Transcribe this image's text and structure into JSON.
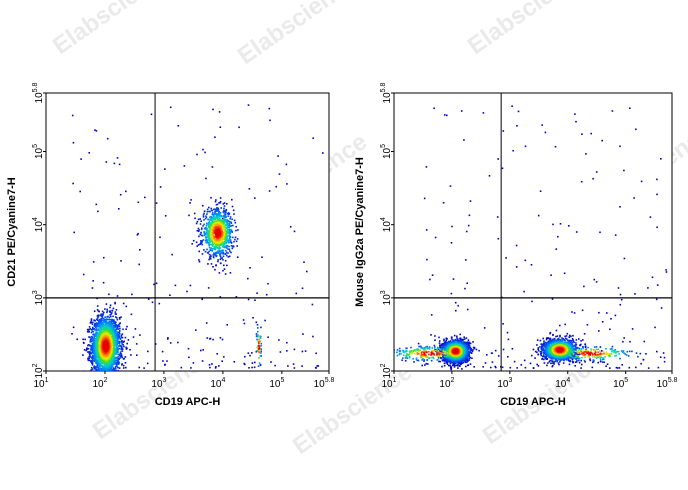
{
  "watermark": {
    "text": "Elabscience",
    "mark": "®"
  },
  "chart_data": [
    {
      "type": "scatter",
      "title": "",
      "xlabel": "CD19 APC-H",
      "ylabel": "CD21 PE/Cyanine7-H",
      "xscale": "log",
      "yscale": "log",
      "xlim_log10": [
        1,
        5.8
      ],
      "ylim_log10": [
        2,
        5.8
      ],
      "x_ticks": [
        {
          "base": "10",
          "exp": "1",
          "v": 1
        },
        {
          "base": "10",
          "exp": "2",
          "v": 2
        },
        {
          "base": "10",
          "exp": "3",
          "v": 3
        },
        {
          "base": "10",
          "exp": "4",
          "v": 4
        },
        {
          "base": "10",
          "exp": "5",
          "v": 5
        },
        {
          "base": "10",
          "exp": "5.8",
          "v": 5.8
        }
      ],
      "y_ticks": [
        {
          "base": "10",
          "exp": "2",
          "v": 2
        },
        {
          "base": "10",
          "exp": "3",
          "v": 3
        },
        {
          "base": "10",
          "exp": "4",
          "v": 4
        },
        {
          "base": "10",
          "exp": "5",
          "v": 5
        },
        {
          "base": "10",
          "exp": "5.8",
          "v": 5.8
        }
      ],
      "gate_log10": {
        "x": 2.85,
        "y": 3.0
      },
      "populations": [
        {
          "x_log10": 2.0,
          "y_log10": 2.35,
          "sx": 0.12,
          "sy": 0.2,
          "count": 2600
        },
        {
          "x_log10": 3.9,
          "y_log10": 3.9,
          "sx": 0.13,
          "sy": 0.16,
          "count": 1000
        },
        {
          "x_log10": 4.6,
          "y_log10": 2.35,
          "sx": 0.02,
          "sy": 0.15,
          "count": 60
        }
      ]
    },
    {
      "type": "scatter",
      "title": "",
      "xlabel": "CD19 APC-H",
      "ylabel": "Mouse IgG2a PE/Cyanine7-H",
      "xscale": "log",
      "yscale": "log",
      "xlim_log10": [
        1,
        5.8
      ],
      "ylim_log10": [
        2,
        5.8
      ],
      "x_ticks": [
        {
          "base": "10",
          "exp": "1",
          "v": 1
        },
        {
          "base": "10",
          "exp": "2",
          "v": 2
        },
        {
          "base": "10",
          "exp": "3",
          "v": 3
        },
        {
          "base": "10",
          "exp": "4",
          "v": 4
        },
        {
          "base": "10",
          "exp": "5",
          "v": 5
        },
        {
          "base": "10",
          "exp": "5.8",
          "v": 5.8
        }
      ],
      "y_ticks": [
        {
          "base": "10",
          "exp": "2",
          "v": 2
        },
        {
          "base": "10",
          "exp": "3",
          "v": 3
        },
        {
          "base": "10",
          "exp": "4",
          "v": 4
        },
        {
          "base": "10",
          "exp": "5",
          "v": 5
        },
        {
          "base": "10",
          "exp": "5.8",
          "v": 5.8
        }
      ],
      "gate_log10": {
        "x": 2.85,
        "y": 3.0
      },
      "populations": [
        {
          "x_log10": 2.05,
          "y_log10": 2.28,
          "sx": 0.11,
          "sy": 0.07,
          "count": 2200
        },
        {
          "x_log10": 3.85,
          "y_log10": 2.3,
          "sx": 0.14,
          "sy": 0.07,
          "count": 1500
        },
        {
          "x_log10": 1.6,
          "y_log10": 2.25,
          "sx": 0.35,
          "sy": 0.05,
          "count": 250
        },
        {
          "x_log10": 4.4,
          "y_log10": 2.25,
          "sx": 0.35,
          "sy": 0.05,
          "count": 200
        }
      ]
    }
  ]
}
